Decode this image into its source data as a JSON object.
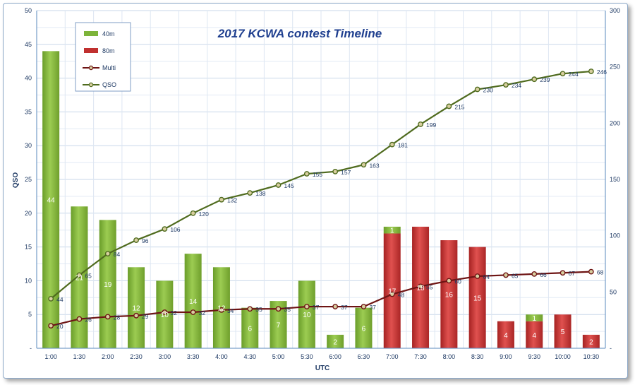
{
  "chart_data": {
    "type": "bar",
    "title": "2017 KCWA contest Timeline",
    "xlabel": "UTC",
    "ylabel": "QSO",
    "ylim": [
      0,
      50
    ],
    "y2lim": [
      0,
      300
    ],
    "yticks": [
      "-",
      "5",
      "10",
      "15",
      "20",
      "25",
      "30",
      "35",
      "40",
      "45",
      "50"
    ],
    "y2ticks": [
      "-",
      "50",
      "100",
      "150",
      "200",
      "250",
      "300"
    ],
    "grid": true,
    "legend_position": "top-left",
    "categories": [
      "1:00",
      "1:30",
      "2:00",
      "2:30",
      "3:00",
      "3:30",
      "4:00",
      "4:30",
      "5:00",
      "5:30",
      "6:00",
      "6:30",
      "7:00",
      "7:30",
      "8:00",
      "8:30",
      "9:00",
      "9:30",
      "10:00",
      "10:30"
    ],
    "series": [
      {
        "name": "40m",
        "type": "bar",
        "stacked": true,
        "color": "#7db43a",
        "values": [
          44,
          21,
          19,
          12,
          10,
          14,
          12,
          6,
          7,
          10,
          2,
          6,
          1,
          0,
          0,
          0,
          0,
          1,
          0,
          0
        ]
      },
      {
        "name": "80m",
        "type": "bar",
        "stacked": true,
        "color": "#c0302f",
        "values": [
          0,
          0,
          0,
          0,
          0,
          0,
          0,
          0,
          0,
          0,
          0,
          0,
          17,
          18,
          16,
          15,
          4,
          4,
          5,
          2
        ]
      },
      {
        "name": "Multi",
        "type": "line",
        "axis": "secondary",
        "color": "#6e1414",
        "values": [
          20,
          26,
          28,
          29,
          32,
          32,
          34,
          35,
          35,
          37,
          37,
          37,
          48,
          55,
          60,
          64,
          65,
          66,
          67,
          68
        ]
      },
      {
        "name": "QSO",
        "type": "line",
        "axis": "secondary",
        "color": "#4f6b1e",
        "values": [
          44,
          65,
          84,
          96,
          106,
          120,
          132,
          138,
          145,
          155,
          157,
          163,
          181,
          199,
          215,
          230,
          234,
          239,
          244,
          246
        ]
      }
    ]
  }
}
